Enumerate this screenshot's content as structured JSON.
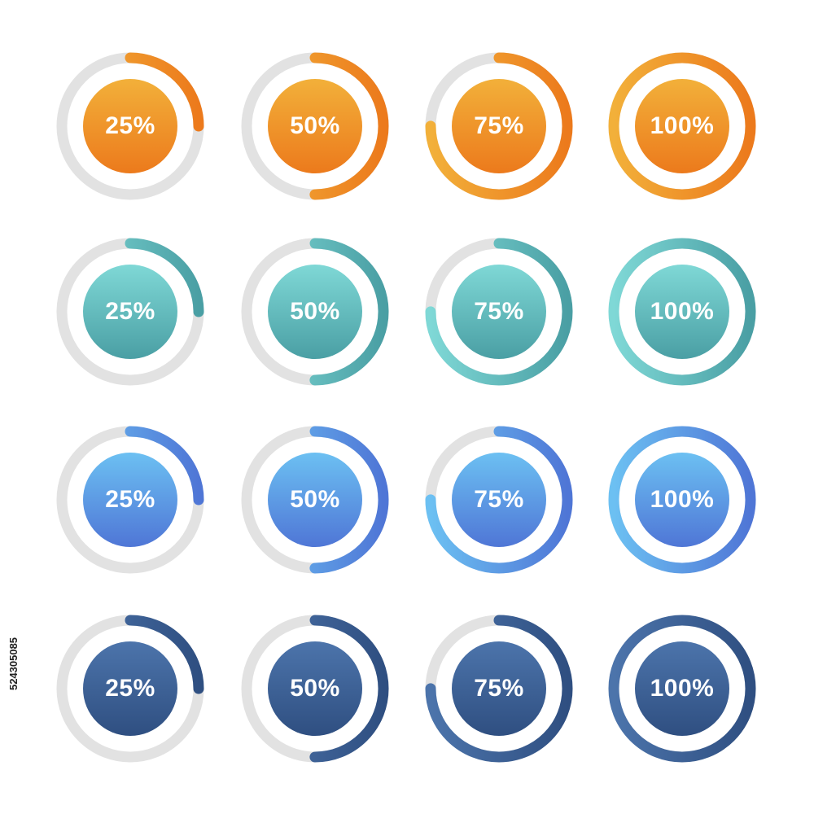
{
  "rows": [
    {
      "name": "orange",
      "top": "#f2b03a",
      "bottom": "#ec7a1c",
      "items": [
        {
          "value": 0.25,
          "label": "25%"
        },
        {
          "value": 0.5,
          "label": "50%"
        },
        {
          "value": 0.75,
          "label": "75%"
        },
        {
          "value": 1.0,
          "label": "100%"
        }
      ]
    },
    {
      "name": "teal",
      "top": "#7fd8d6",
      "bottom": "#4a9fa4",
      "items": [
        {
          "value": 0.25,
          "label": "25%"
        },
        {
          "value": 0.5,
          "label": "50%"
        },
        {
          "value": 0.75,
          "label": "75%"
        },
        {
          "value": 1.0,
          "label": "100%"
        }
      ]
    },
    {
      "name": "blue",
      "top": "#6cc0f2",
      "bottom": "#4f76d6",
      "items": [
        {
          "value": 0.25,
          "label": "25%"
        },
        {
          "value": 0.5,
          "label": "50%"
        },
        {
          "value": 0.75,
          "label": "75%"
        },
        {
          "value": 1.0,
          "label": "100%"
        }
      ]
    },
    {
      "name": "navy",
      "top": "#4c74ab",
      "bottom": "#2f4f81",
      "items": [
        {
          "value": 0.25,
          "label": "25%"
        },
        {
          "value": 0.5,
          "label": "50%"
        },
        {
          "value": 0.75,
          "label": "75%"
        },
        {
          "value": 1.0,
          "label": "100%"
        }
      ]
    }
  ],
  "track_color": "#e2e2e2",
  "stock_id": "524305085"
}
